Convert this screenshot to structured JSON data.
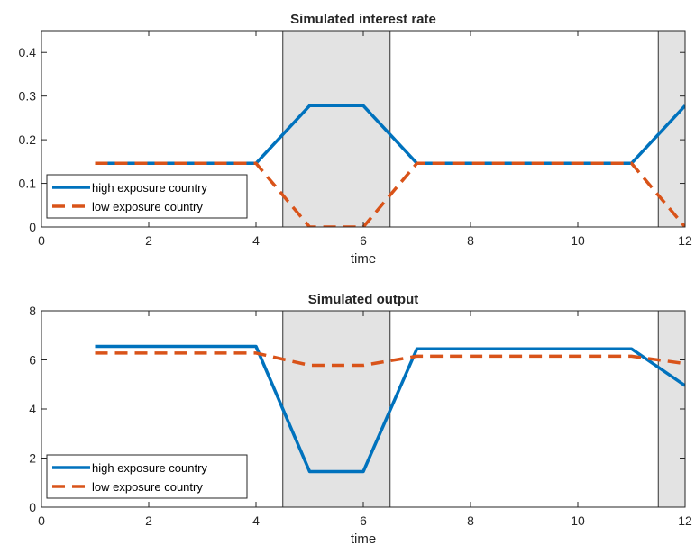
{
  "chart_data": [
    {
      "type": "line",
      "title": "Simulated interest rate",
      "xlabel": "time",
      "ylabel": "",
      "xlim": [
        0,
        12
      ],
      "ylim": [
        0,
        0.45
      ],
      "xticks": [
        0,
        2,
        4,
        6,
        8,
        10,
        12
      ],
      "yticks": [
        0,
        0.1,
        0.2,
        0.3,
        0.4
      ],
      "xtick_labels": [
        "0",
        "2",
        "4",
        "6",
        "8",
        "10",
        "12"
      ],
      "ytick_labels": [
        "0",
        "0.1",
        "0.2",
        "0.3",
        "0.4"
      ],
      "shaded_regions": [
        [
          4.5,
          6.5
        ],
        [
          11.5,
          12
        ]
      ],
      "legend_position": "bottom-left",
      "x": [
        1,
        2,
        3,
        4,
        5,
        6,
        7,
        8,
        9,
        10,
        11,
        12
      ],
      "series": [
        {
          "name": "high exposure country",
          "color": "#0072BD",
          "style": "solid",
          "values": [
            0.146,
            0.146,
            0.146,
            0.146,
            0.278,
            0.278,
            0.146,
            0.146,
            0.146,
            0.146,
            0.146,
            0.278
          ]
        },
        {
          "name": "low exposure country",
          "color": "#D95319",
          "style": "dashed",
          "values": [
            0.146,
            0.146,
            0.146,
            0.146,
            0.0,
            0.0,
            0.146,
            0.146,
            0.146,
            0.146,
            0.146,
            0.0
          ]
        }
      ]
    },
    {
      "type": "line",
      "title": "Simulated output",
      "xlabel": "time",
      "ylabel": "",
      "xlim": [
        0,
        12
      ],
      "ylim": [
        0,
        8
      ],
      "xticks": [
        0,
        2,
        4,
        6,
        8,
        10,
        12
      ],
      "yticks": [
        0,
        2,
        4,
        6,
        8
      ],
      "xtick_labels": [
        "0",
        "2",
        "4",
        "6",
        "8",
        "10",
        "12"
      ],
      "ytick_labels": [
        "0",
        "2",
        "4",
        "6",
        "8"
      ],
      "shaded_regions": [
        [
          4.5,
          6.5
        ],
        [
          11.5,
          12
        ]
      ],
      "legend_position": "bottom-left",
      "x": [
        1,
        2,
        3,
        4,
        5,
        6,
        7,
        8,
        9,
        10,
        11,
        12
      ],
      "series": [
        {
          "name": "high exposure country",
          "color": "#0072BD",
          "style": "solid",
          "values": [
            6.55,
            6.55,
            6.55,
            6.55,
            1.45,
            1.45,
            6.45,
            6.45,
            6.45,
            6.45,
            6.45,
            4.95
          ]
        },
        {
          "name": "low exposure country",
          "color": "#D95319",
          "style": "dashed",
          "values": [
            6.28,
            6.28,
            6.28,
            6.28,
            5.78,
            5.78,
            6.15,
            6.15,
            6.15,
            6.15,
            6.15,
            5.85
          ]
        }
      ]
    }
  ],
  "colors": {
    "shade": "#E3E3E3",
    "axis": "#262626",
    "high": "#0072BD",
    "low": "#D95319"
  }
}
